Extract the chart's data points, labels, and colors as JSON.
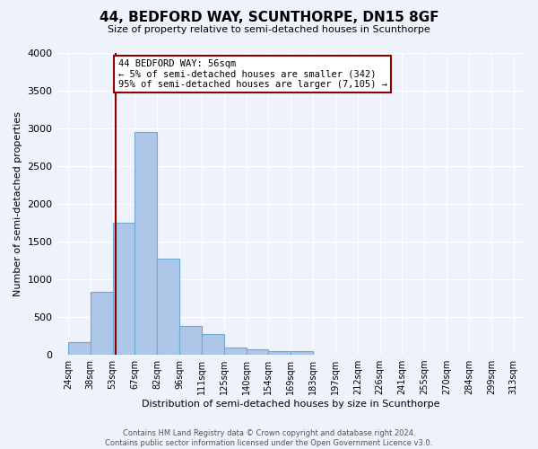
{
  "title_line1": "44, BEDFORD WAY, SCUNTHORPE, DN15 8GF",
  "title_line2": "Size of property relative to semi-detached houses in Scunthorpe",
  "xlabel": "Distribution of semi-detached houses by size in Scunthorpe",
  "ylabel": "Number of semi-detached properties",
  "annotation_title": "44 BEDFORD WAY: 56sqm",
  "annotation_line2": "← 5% of semi-detached houses are smaller (342)",
  "annotation_line3": "95% of semi-detached houses are larger (7,105) →",
  "footer_line1": "Contains HM Land Registry data © Crown copyright and database right 2024.",
  "footer_line2": "Contains public sector information licensed under the Open Government Licence v3.0.",
  "property_size_sqm": 56,
  "bar_categories": [
    "24sqm",
    "38sqm",
    "53sqm",
    "67sqm",
    "82sqm",
    "96sqm",
    "111sqm",
    "125sqm",
    "140sqm",
    "154sqm",
    "169sqm",
    "183sqm",
    "197sqm",
    "212sqm",
    "226sqm",
    "241sqm",
    "255sqm",
    "270sqm",
    "284sqm",
    "299sqm",
    "313sqm"
  ],
  "bar_indices": [
    0,
    1,
    2,
    3,
    4,
    5,
    6,
    7,
    8,
    9,
    10,
    11,
    12,
    13,
    14,
    15,
    16,
    17,
    18,
    19,
    20
  ],
  "bar_heights": [
    170,
    830,
    1750,
    2950,
    1280,
    380,
    270,
    95,
    75,
    50,
    50,
    0,
    0,
    0,
    0,
    0,
    0,
    0,
    0,
    0,
    0
  ],
  "vline_index": 2.14,
  "bar_color": "#aec6e8",
  "bar_edgecolor": "#6aaad4",
  "vline_color": "#8b0000",
  "annotation_box_edgecolor": "#8b0000",
  "background_color": "#eef2fa",
  "grid_color": "#ffffff",
  "ylim": [
    0,
    4000
  ],
  "yticks": [
    0,
    500,
    1000,
    1500,
    2000,
    2500,
    3000,
    3500,
    4000
  ],
  "title_fontsize": 11,
  "subtitle_fontsize": 8,
  "ylabel_fontsize": 8,
  "xlabel_fontsize": 8,
  "tick_fontsize": 7,
  "annotation_fontsize": 7.5,
  "footer_fontsize": 6
}
